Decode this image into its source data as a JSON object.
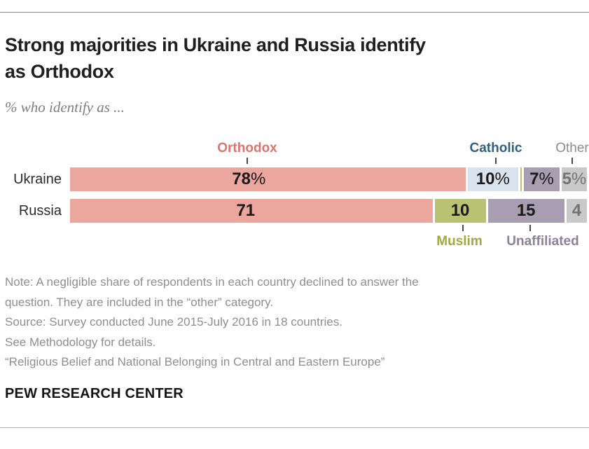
{
  "header": {
    "title_lines": [
      "Strong majorities in Ukraine and Russia identify",
      "as Orthodox"
    ],
    "subtitle": "% who identify as ..."
  },
  "chart_data": {
    "type": "bar",
    "variant": "horizontal-stacked",
    "unit": "%",
    "xlim": [
      0,
      100
    ],
    "categories": [
      "Orthodox",
      "Catholic",
      "Muslim",
      "Unaffiliated",
      "Other"
    ],
    "series_colors": {
      "Orthodox": "#eba79d",
      "Catholic": "#d8e3ed",
      "Muslim": "#b9c173",
      "Unaffiliated": "#a79eb1",
      "Other": "#c9c9c9"
    },
    "annotation_colors": {
      "Orthodox": "#d9766c",
      "Catholic": "#30607f",
      "Muslim": "#9dab3f",
      "Unaffiliated": "#8b8199",
      "Other": "#8c8c8c"
    },
    "annotations": {
      "orthodox": "Orthodox",
      "catholic": "Catholic",
      "other": "Other",
      "muslim": "Muslim",
      "unaffiliated": "Unaffiliated"
    },
    "rows": [
      {
        "country": "Ukraine",
        "segments": [
          {
            "category": "Orthodox",
            "value": 78,
            "display": "78",
            "suffix": "%"
          },
          {
            "category": "Catholic",
            "value": 10,
            "display": "10",
            "suffix": "%"
          },
          {
            "category": "Muslim",
            "value": 0.3,
            "display": "",
            "suffix": "",
            "sliver": true
          },
          {
            "category": "Unaffiliated",
            "value": 7,
            "display": "7",
            "suffix": "%"
          },
          {
            "category": "Other",
            "value": 5,
            "display": "5",
            "suffix": "%",
            "muted": true
          }
        ]
      },
      {
        "country": "Russia",
        "segments": [
          {
            "category": "Orthodox",
            "value": 71,
            "display": "71",
            "suffix": ""
          },
          {
            "category": "Muslim",
            "value": 10,
            "display": "10",
            "suffix": ""
          },
          {
            "category": "Unaffiliated",
            "value": 15,
            "display": "15",
            "suffix": ""
          },
          {
            "category": "Other",
            "value": 4,
            "display": "4",
            "suffix": "",
            "muted": true
          }
        ]
      }
    ]
  },
  "notes": {
    "lines": [
      "Note: A negligible share of respondents in each country declined to answer the",
      "question. They are included in the “other” category.",
      "Source: Survey conducted June 2015-July 2016 in 18 countries.",
      "See Methodology for details.",
      "“Religious Belief and National Belonging in Central and Eastern Europe”"
    ]
  },
  "footer": {
    "brand": "PEW RESEARCH CENTER"
  }
}
